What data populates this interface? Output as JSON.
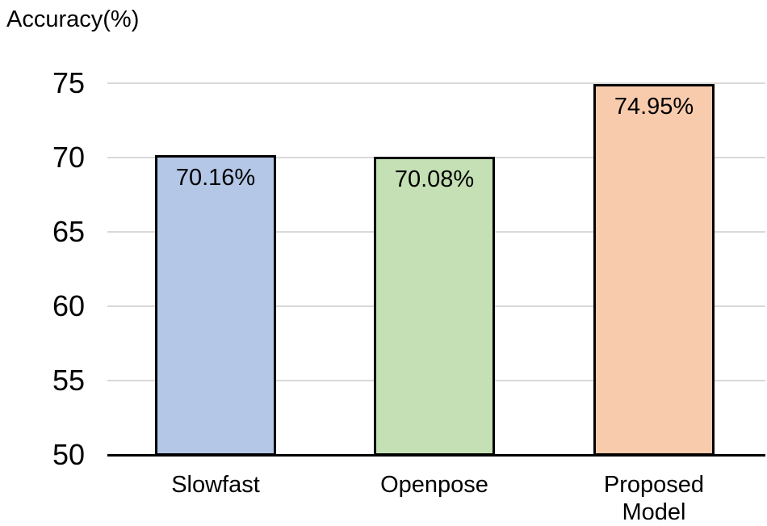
{
  "chart_data": {
    "type": "bar",
    "title": "Accuracy(%)",
    "categories": [
      "Slowfast",
      "Openpose",
      "Proposed Model"
    ],
    "values": [
      70.16,
      70.08,
      74.95
    ],
    "value_labels": [
      "70.16%",
      "70.08%",
      "74.95%"
    ],
    "bar_colors": [
      "#b4c7e7",
      "#c5e0b4",
      "#f8cbad"
    ],
    "bar_border_color": "#000000",
    "yticks": [
      50,
      55,
      60,
      65,
      70,
      75
    ],
    "ylim": [
      50,
      75
    ],
    "xlabel": "",
    "ylabel": "Accuracy(%)",
    "grid": true,
    "gridline_color": "#d9d9d9",
    "axis_color": "#000000",
    "text_color": "#000000",
    "legend": "none"
  }
}
